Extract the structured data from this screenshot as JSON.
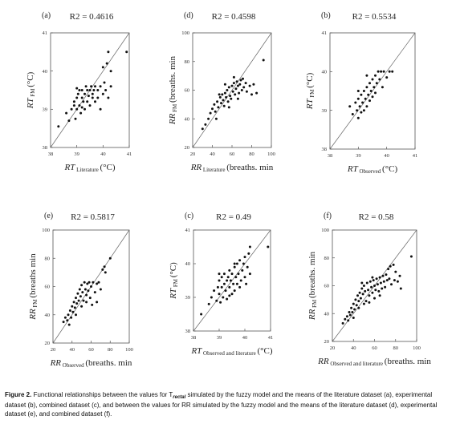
{
  "chart_data": [
    {
      "panel": "(a)",
      "type": "scatter",
      "r2": "R",
      "r2_value": "2 = 0.4616",
      "xlabel_main": "RT",
      "xlabel_sub": "Literature",
      "xlabel_unit": "(°C)",
      "ylabel_main": "RT",
      "ylabel_sub": "FM",
      "ylabel_unit": "(°C)",
      "xlim": [
        38,
        41
      ],
      "ylim": [
        38,
        41
      ],
      "xticks": [
        "38",
        "39",
        "40",
        "41"
      ],
      "yticks": [
        "38",
        "39",
        "40",
        "41"
      ],
      "identity_line": true,
      "points": [
        [
          38.6,
          38.9
        ],
        [
          38.7,
          38.7
        ],
        [
          38.8,
          39.0
        ],
        [
          38.9,
          39.1
        ],
        [
          38.9,
          39.2
        ],
        [
          38.95,
          38.75
        ],
        [
          39.0,
          39.3
        ],
        [
          39.0,
          39.0
        ],
        [
          39.05,
          39.4
        ],
        [
          39.1,
          39.1
        ],
        [
          39.1,
          39.5
        ],
        [
          39.15,
          38.9
        ],
        [
          39.2,
          39.3
        ],
        [
          39.2,
          39.5
        ],
        [
          39.25,
          39.2
        ],
        [
          39.3,
          39.4
        ],
        [
          39.3,
          39.0
        ],
        [
          39.35,
          39.6
        ],
        [
          39.4,
          39.5
        ],
        [
          39.4,
          39.2
        ],
        [
          39.45,
          39.35
        ],
        [
          39.5,
          39.5
        ],
        [
          39.5,
          39.1
        ],
        [
          39.55,
          39.6
        ],
        [
          39.6,
          39.3
        ],
        [
          39.65,
          39.5
        ],
        [
          39.7,
          39.2
        ],
        [
          39.7,
          39.6
        ],
        [
          39.8,
          39.5
        ],
        [
          39.8,
          39.3
        ],
        [
          39.9,
          39.6
        ],
        [
          40.0,
          39.4
        ],
        [
          40.0,
          40.1
        ],
        [
          40.05,
          39.7
        ],
        [
          40.1,
          39.5
        ],
        [
          40.15,
          40.2
        ],
        [
          40.2,
          40.5
        ],
        [
          40.3,
          39.6
        ],
        [
          40.3,
          40.0
        ],
        [
          40.9,
          40.5
        ],
        [
          38.3,
          38.55
        ],
        [
          39.0,
          39.55
        ],
        [
          39.2,
          39.05
        ],
        [
          39.6,
          39.4
        ],
        [
          39.9,
          39.0
        ],
        [
          40.2,
          39.3
        ]
      ]
    },
    {
      "panel": "(d)",
      "type": "scatter",
      "r2": "R",
      "r2_value": "2 = 0.4598",
      "xlabel_main": "RR",
      "xlabel_sub": "Literature",
      "xlabel_unit": "(breaths. min",
      "ylabel_main": "RR",
      "ylabel_sub": "FM",
      "ylabel_unit": "(breaths. min",
      "xlim": [
        20,
        100
      ],
      "ylim": [
        20,
        100
      ],
      "xticks": [
        "20",
        "40",
        "60",
        "80",
        "100"
      ],
      "yticks": [
        "20",
        "40",
        "60",
        "80",
        "100"
      ],
      "identity_line": true,
      "points": [
        [
          30,
          33
        ],
        [
          33,
          36
        ],
        [
          36,
          40
        ],
        [
          38,
          44
        ],
        [
          40,
          47
        ],
        [
          42,
          50
        ],
        [
          43,
          45
        ],
        [
          45,
          52
        ],
        [
          46,
          48
        ],
        [
          48,
          55
        ],
        [
          49,
          51
        ],
        [
          50,
          57
        ],
        [
          51,
          53
        ],
        [
          52,
          49
        ],
        [
          53,
          58
        ],
        [
          54,
          55
        ],
        [
          55,
          60
        ],
        [
          56,
          52
        ],
        [
          57,
          62
        ],
        [
          58,
          56
        ],
        [
          59,
          54
        ],
        [
          60,
          63
        ],
        [
          61,
          59
        ],
        [
          62,
          65
        ],
        [
          63,
          57
        ],
        [
          64,
          61
        ],
        [
          65,
          66
        ],
        [
          66,
          63
        ],
        [
          67,
          58
        ],
        [
          68,
          64
        ],
        [
          69,
          67
        ],
        [
          70,
          60
        ],
        [
          72,
          62
        ],
        [
          74,
          65
        ],
        [
          75,
          59
        ],
        [
          78,
          63
        ],
        [
          80,
          57
        ],
        [
          82,
          64
        ],
        [
          92,
          81
        ],
        [
          44,
          40
        ],
        [
          47,
          57
        ],
        [
          53,
          64
        ],
        [
          57,
          48
        ],
        [
          62,
          69
        ],
        [
          66,
          54
        ],
        [
          71,
          68
        ],
        [
          85,
          58
        ]
      ]
    },
    {
      "panel": "(b)",
      "type": "scatter",
      "r2": "R",
      "r2_value": "2 = 0.5534",
      "xlabel_main": "RT",
      "xlabel_sub": "Observed",
      "xlabel_unit": "(°C)",
      "ylabel_main": "RT",
      "ylabel_sub": "FM",
      "ylabel_unit": "(°C)",
      "xlim": [
        38,
        41
      ],
      "ylim": [
        38,
        41
      ],
      "xticks": [
        "38",
        "39",
        "40",
        "41"
      ],
      "yticks": [
        "38",
        "39",
        "40",
        "41"
      ],
      "identity_line": true,
      "points": [
        [
          38.7,
          39.1
        ],
        [
          38.8,
          38.9
        ],
        [
          38.9,
          39.2
        ],
        [
          38.95,
          39.0
        ],
        [
          39.0,
          39.3
        ],
        [
          39.0,
          38.8
        ],
        [
          39.05,
          39.1
        ],
        [
          39.1,
          39.4
        ],
        [
          39.1,
          38.95
        ],
        [
          39.15,
          39.2
        ],
        [
          39.2,
          39.5
        ],
        [
          39.2,
          39.0
        ],
        [
          39.25,
          39.3
        ],
        [
          39.3,
          39.6
        ],
        [
          39.3,
          39.1
        ],
        [
          39.35,
          39.4
        ],
        [
          39.4,
          39.7
        ],
        [
          39.4,
          39.25
        ],
        [
          39.45,
          39.5
        ],
        [
          39.5,
          39.8
        ],
        [
          39.5,
          39.35
        ],
        [
          39.55,
          39.6
        ],
        [
          39.6,
          39.9
        ],
        [
          39.6,
          39.45
        ],
        [
          39.65,
          39.7
        ],
        [
          39.7,
          40.0
        ],
        [
          39.75,
          39.8
        ],
        [
          39.8,
          40.0
        ],
        [
          39.85,
          39.6
        ],
        [
          39.9,
          40.0
        ],
        [
          40.0,
          39.85
        ],
        [
          40.1,
          40.0
        ],
        [
          40.2,
          40.0
        ],
        [
          39.0,
          39.5
        ],
        [
          39.3,
          39.9
        ]
      ]
    },
    {
      "panel": "(e)",
      "type": "scatter",
      "r2": "R",
      "r2_value": "2 = 0.5817",
      "xlabel_main": "RR",
      "xlabel_sub": "Observed",
      "xlabel_unit": "(breaths. min",
      "ylabel_main": "RR",
      "ylabel_sub": "FM",
      "ylabel_unit": "(breaths min",
      "xlim": [
        20,
        100
      ],
      "ylim": [
        20,
        100
      ],
      "xticks": [
        "20",
        "40",
        "60",
        "80",
        "100"
      ],
      "yticks": [
        "20",
        "40",
        "60",
        "80",
        "100"
      ],
      "identity_line": true,
      "points": [
        [
          31,
          35
        ],
        [
          33,
          38
        ],
        [
          35,
          36
        ],
        [
          36,
          40
        ],
        [
          38,
          43
        ],
        [
          39,
          38
        ],
        [
          40,
          46
        ],
        [
          41,
          42
        ],
        [
          42,
          49
        ],
        [
          43,
          45
        ],
        [
          44,
          52
        ],
        [
          45,
          48
        ],
        [
          46,
          55
        ],
        [
          47,
          50
        ],
        [
          48,
          58
        ],
        [
          49,
          53
        ],
        [
          50,
          61
        ],
        [
          51,
          56
        ],
        [
          52,
          50
        ],
        [
          53,
          63
        ],
        [
          54,
          58
        ],
        [
          55,
          54
        ],
        [
          56,
          62
        ],
        [
          57,
          57
        ],
        [
          58,
          63
        ],
        [
          59,
          52
        ],
        [
          60,
          60
        ],
        [
          62,
          63
        ],
        [
          64,
          56
        ],
        [
          66,
          62
        ],
        [
          68,
          63
        ],
        [
          70,
          58
        ],
        [
          72,
          72
        ],
        [
          74,
          74
        ],
        [
          75,
          70
        ],
        [
          80,
          80
        ],
        [
          37,
          33
        ],
        [
          44,
          40
        ],
        [
          50,
          46
        ],
        [
          55,
          49
        ],
        [
          61,
          47
        ],
        [
          66,
          49
        ]
      ]
    },
    {
      "panel": "(c)",
      "type": "scatter",
      "r2": "R",
      "r2_value": "2 = 0.49",
      "xlabel_main": "RT",
      "xlabel_sub": "Observed and literature",
      "xlabel_unit": "(°C)",
      "ylabel_main": "RT",
      "ylabel_sub": "FM",
      "ylabel_unit": "(°C)",
      "xlim": [
        38,
        41
      ],
      "ylim": [
        38,
        41
      ],
      "xticks": [
        "38",
        "39",
        "40",
        "41"
      ],
      "yticks": [
        "38",
        "39",
        "40",
        "41"
      ],
      "identity_line": true,
      "points": [
        [
          38.3,
          38.5
        ],
        [
          38.6,
          38.8
        ],
        [
          38.7,
          39.0
        ],
        [
          38.8,
          39.2
        ],
        [
          38.9,
          38.9
        ],
        [
          38.95,
          39.3
        ],
        [
          39.0,
          39.1
        ],
        [
          39.0,
          39.5
        ],
        [
          39.05,
          38.85
        ],
        [
          39.1,
          39.3
        ],
        [
          39.1,
          39.6
        ],
        [
          39.15,
          39.0
        ],
        [
          39.2,
          39.4
        ],
        [
          39.2,
          39.7
        ],
        [
          39.25,
          39.2
        ],
        [
          39.3,
          39.5
        ],
        [
          39.3,
          38.95
        ],
        [
          39.35,
          39.6
        ],
        [
          39.4,
          39.3
        ],
        [
          39.4,
          39.8
        ],
        [
          39.45,
          39.5
        ],
        [
          39.5,
          39.1
        ],
        [
          39.5,
          39.7
        ],
        [
          39.55,
          39.4
        ],
        [
          39.6,
          39.9
        ],
        [
          39.6,
          39.2
        ],
        [
          39.65,
          39.6
        ],
        [
          39.7,
          39.4
        ],
        [
          39.7,
          40.0
        ],
        [
          39.75,
          39.7
        ],
        [
          39.8,
          39.3
        ],
        [
          39.8,
          40.1
        ],
        [
          39.85,
          39.5
        ],
        [
          39.9,
          39.8
        ],
        [
          39.95,
          40.0
        ],
        [
          40.0,
          39.6
        ],
        [
          40.0,
          40.2
        ],
        [
          40.05,
          39.4
        ],
        [
          40.1,
          39.9
        ],
        [
          40.15,
          40.3
        ],
        [
          40.2,
          39.7
        ],
        [
          40.2,
          40.5
        ],
        [
          40.9,
          40.5
        ],
        [
          39.0,
          39.7
        ],
        [
          39.4,
          39.05
        ],
        [
          39.6,
          40.0
        ]
      ]
    },
    {
      "panel": "(f)",
      "type": "scatter",
      "r2": "R",
      "r2_value": "2 = 0.58",
      "xlabel_main": "RR",
      "xlabel_sub": "Observed and literature",
      "xlabel_unit": "(breaths. min",
      "ylabel_main": "RR",
      "ylabel_sub": "FM",
      "ylabel_unit": "(breaths. min",
      "xlim": [
        20,
        100
      ],
      "ylim": [
        20,
        100
      ],
      "xticks": [
        "20",
        "40",
        "60",
        "80",
        "100"
      ],
      "yticks": [
        "20",
        "40",
        "60",
        "80",
        "100"
      ],
      "identity_line": true,
      "points": [
        [
          30,
          33
        ],
        [
          32,
          36
        ],
        [
          34,
          38
        ],
        [
          35,
          35
        ],
        [
          36,
          41
        ],
        [
          37,
          39
        ],
        [
          38,
          44
        ],
        [
          39,
          41
        ],
        [
          40,
          47
        ],
        [
          41,
          43
        ],
        [
          42,
          50
        ],
        [
          43,
          46
        ],
        [
          44,
          53
        ],
        [
          45,
          49
        ],
        [
          46,
          55
        ],
        [
          47,
          51
        ],
        [
          48,
          58
        ],
        [
          49,
          54
        ],
        [
          50,
          60
        ],
        [
          51,
          56
        ],
        [
          52,
          49
        ],
        [
          53,
          62
        ],
        [
          54,
          57
        ],
        [
          55,
          53
        ],
        [
          56,
          63
        ],
        [
          57,
          59
        ],
        [
          58,
          55
        ],
        [
          59,
          64
        ],
        [
          60,
          60
        ],
        [
          61,
          57
        ],
        [
          62,
          65
        ],
        [
          63,
          61
        ],
        [
          64,
          56
        ],
        [
          65,
          66
        ],
        [
          66,
          62
        ],
        [
          67,
          58
        ],
        [
          68,
          67
        ],
        [
          69,
          63
        ],
        [
          70,
          59
        ],
        [
          71,
          68
        ],
        [
          72,
          64
        ],
        [
          73,
          72
        ],
        [
          74,
          65
        ],
        [
          75,
          74
        ],
        [
          76,
          61
        ],
        [
          78,
          75
        ],
        [
          79,
          64
        ],
        [
          80,
          70
        ],
        [
          82,
          63
        ],
        [
          84,
          67
        ],
        [
          85,
          58
        ],
        [
          95,
          81
        ],
        [
          40,
          37
        ],
        [
          45,
          44
        ],
        [
          50,
          47
        ],
        [
          55,
          48
        ],
        [
          60,
          51
        ],
        [
          65,
          53
        ],
        [
          48,
          62
        ],
        [
          58,
          66
        ]
      ]
    }
  ],
  "caption": {
    "bold_prefix": "Figure 2.",
    "text_1": " Functional relationships between the values for T",
    "subscript": "rectal",
    "text_2": " simulated by the fuzzy model and the means of the literature dataset (a), experimental dataset (b), combined dataset (c), and between the values for RR simulated by the fuzzy model and the means of the literature dataset (d), experimental dataset (e), and combined dataset (f)."
  }
}
